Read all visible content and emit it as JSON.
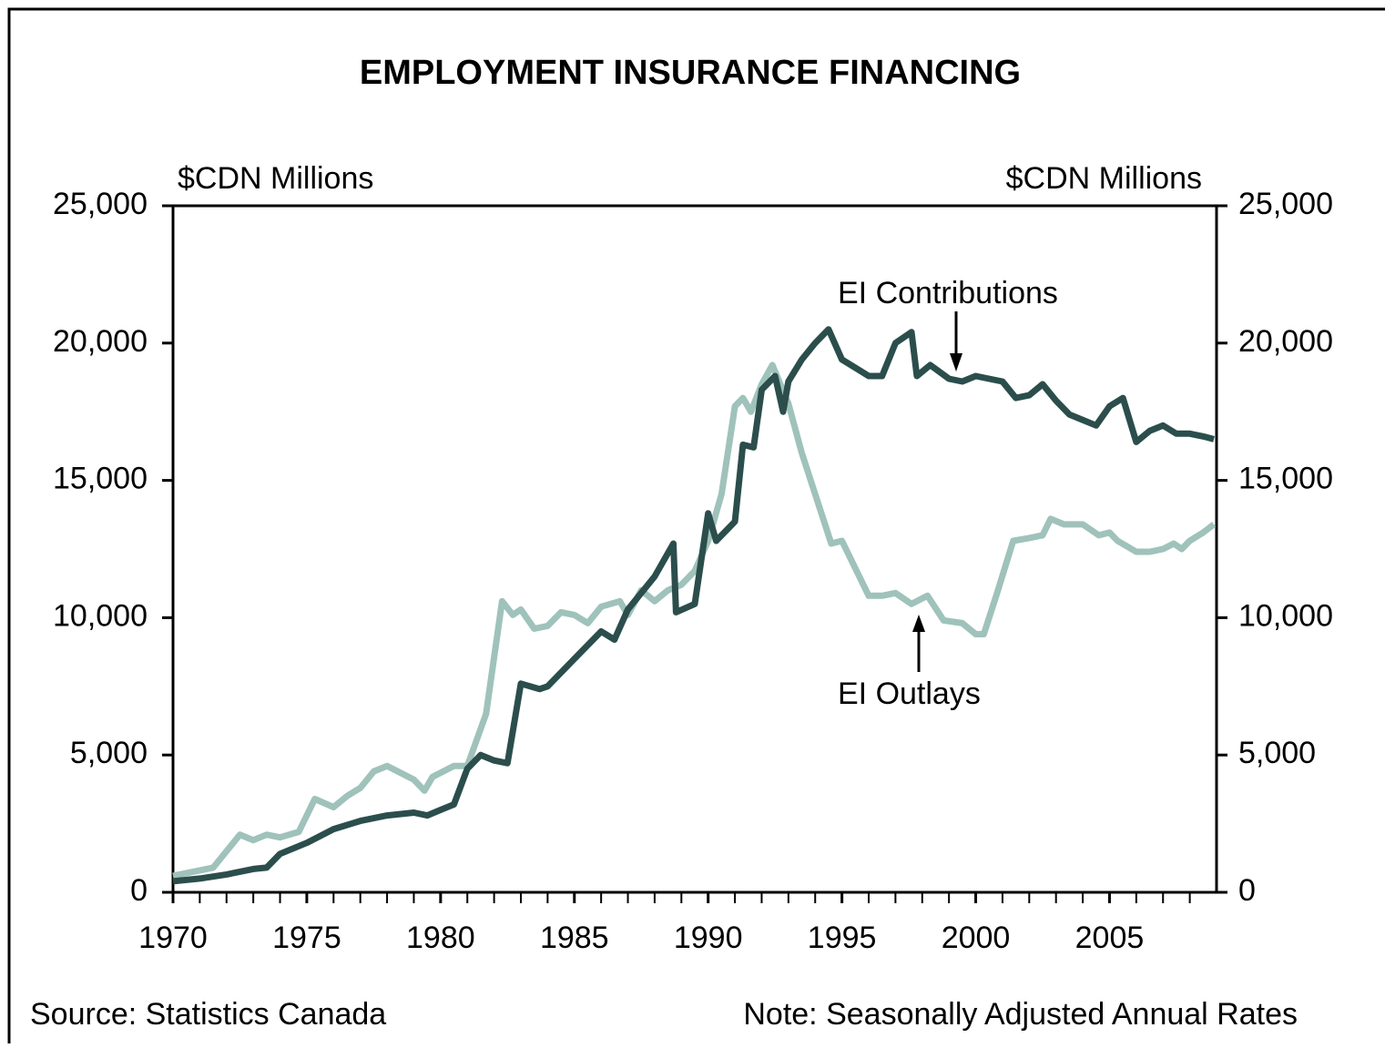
{
  "chart_data": {
    "type": "line",
    "title": "EMPLOYMENT INSURANCE FINANCING",
    "y_label": "$CDN Millions",
    "y2_label": "$CDN Millions",
    "source": "Source: Statistics Canada",
    "note": "Note: Seasonally Adjusted Annual Rates",
    "annotations": [
      "EI Contributions",
      "EI Outlays"
    ],
    "xlim": [
      1970,
      2009
    ],
    "xticks": [
      1970,
      1975,
      1980,
      1985,
      1990,
      1995,
      2000,
      2005
    ],
    "ylim": [
      0,
      25000
    ],
    "yticks": [
      0,
      {
        "value": 5000,
        "label": "5,000"
      },
      {
        "value": 10000,
        "label": "10,000"
      },
      {
        "value": 15000,
        "label": "15,000"
      },
      {
        "value": 20000,
        "label": "20,000"
      },
      {
        "value": 25000,
        "label": "25,000"
      }
    ],
    "y2lim": [
      0,
      25000
    ],
    "y2ticks": [
      0,
      {
        "value": 5000,
        "label": "5,000"
      },
      {
        "value": 10000,
        "label": "10,000"
      },
      {
        "value": 15000,
        "label": "15,000"
      },
      {
        "value": 20000,
        "label": "20,000"
      },
      {
        "value": 25000,
        "label": "25,000"
      }
    ],
    "series": [
      {
        "name": "EI Contributions",
        "color": "#2b4e4c",
        "x": [
          1970,
          1971,
          1972,
          1973,
          1973.5,
          1974,
          1975,
          1976,
          1977,
          1978,
          1979,
          1979.5,
          1980,
          1980.5,
          1981,
          1981.5,
          1982,
          1982.5,
          1983,
          1983.7,
          1984,
          1985,
          1986,
          1986.5,
          1987,
          1988,
          1988.7,
          1988.8,
          1989.5,
          1990,
          1990.3,
          1991,
          1991.3,
          1991.7,
          1992,
          1992.5,
          1992.8,
          1993,
          1993.5,
          1994,
          1994.5,
          1995,
          1995.5,
          1996,
          1996.5,
          1997,
          1997.6,
          1997.8,
          1998.3,
          1999,
          1999.5,
          2000,
          2001,
          2001.5,
          2002,
          2002.5,
          2003,
          2003.5,
          2004,
          2004.5,
          2005,
          2005.5,
          2006,
          2006.5,
          2007,
          2007.5,
          2008,
          2008.5,
          2008.9
        ],
        "values": [
          400,
          500,
          650,
          850,
          900,
          1400,
          1800,
          2300,
          2600,
          2800,
          2900,
          2800,
          3000,
          3200,
          4500,
          5000,
          4800,
          4700,
          7600,
          7400,
          7500,
          8500,
          9500,
          9200,
          10300,
          11500,
          12700,
          10200,
          10500,
          13800,
          12800,
          13500,
          16300,
          16200,
          18300,
          18800,
          17500,
          18600,
          19400,
          20000,
          20500,
          19400,
          19100,
          18800,
          18800,
          20000,
          20400,
          18800,
          19200,
          18700,
          18600,
          18800,
          18600,
          18000,
          18100,
          18500,
          17900,
          17400,
          17200,
          17000,
          17700,
          18000,
          16400,
          16800,
          17000,
          16700,
          16700,
          16600,
          16500
        ]
      },
      {
        "name": "EI Outlays",
        "color": "#9fc2bb",
        "x": [
          1970,
          1971,
          1971.5,
          1972,
          1972.5,
          1973,
          1973.5,
          1974,
          1974.7,
          1975.3,
          1976,
          1976.5,
          1977,
          1977.5,
          1978,
          1979,
          1979.4,
          1979.7,
          1980.5,
          1981,
          1981.7,
          1982.3,
          1982.7,
          1983,
          1983.5,
          1984,
          1984.5,
          1985,
          1985.5,
          1986,
          1986.7,
          1987,
          1987.5,
          1988,
          1988.5,
          1989,
          1989.5,
          1990,
          1990.5,
          1991,
          1991.3,
          1991.6,
          1992,
          1992.4,
          1993,
          1993.5,
          1994,
          1994.6,
          1995,
          1995.5,
          1996,
          1996.5,
          1997,
          1997.6,
          1998.2,
          1998.8,
          1999.5,
          2000,
          2000.3,
          2000.8,
          2001.4,
          2002,
          2002.5,
          2002.8,
          2003.3,
          2004,
          2004.6,
          2005,
          2005.3,
          2006,
          2006.5,
          2007,
          2007.4,
          2007.7,
          2008,
          2008.5,
          2008.9
        ],
        "values": [
          600,
          800,
          900,
          1500,
          2100,
          1900,
          2100,
          2000,
          2200,
          3400,
          3100,
          3500,
          3800,
          4400,
          4600,
          4100,
          3700,
          4200,
          4600,
          4600,
          6500,
          10600,
          10100,
          10300,
          9600,
          9700,
          10200,
          10100,
          9800,
          10400,
          10600,
          10100,
          11000,
          10600,
          11000,
          11200,
          11700,
          12800,
          14500,
          17700,
          18000,
          17500,
          18500,
          19200,
          17800,
          16000,
          14500,
          12700,
          12800,
          11800,
          10800,
          10800,
          10900,
          10500,
          10800,
          9900,
          9800,
          9400,
          9400,
          10900,
          12800,
          12900,
          13000,
          13600,
          13400,
          13400,
          13000,
          13100,
          12800,
          12400,
          12400,
          12500,
          12700,
          12500,
          12800,
          13100,
          13400
        ]
      }
    ]
  }
}
